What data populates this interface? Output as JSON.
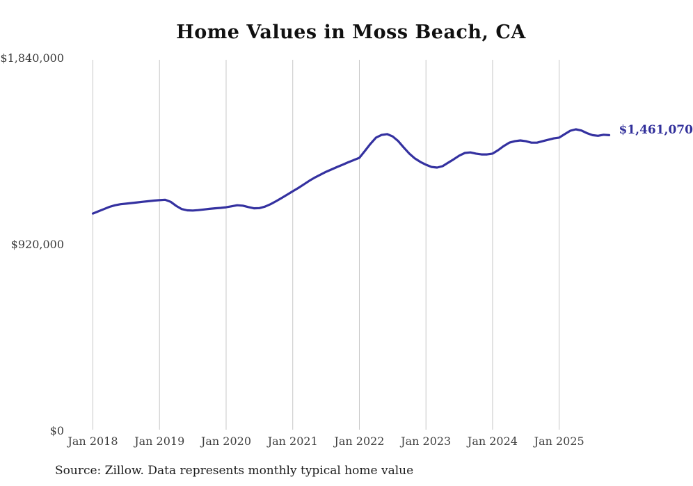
{
  "colors": {
    "line": "#3431a0",
    "end_label": "#32309b",
    "gridline": "#c7c7c7",
    "title_text": "#101010",
    "axis_text": "#3f3f3f",
    "source_text": "#1c1c1c",
    "background": "#ffffff"
  },
  "chart_data": {
    "type": "line",
    "title": "Home Values in Moss Beach, CA",
    "source": "Source: Zillow. Data represents monthly typical home value",
    "xlabel": "",
    "ylabel": "",
    "ylim": [
      0,
      1840000
    ],
    "grid": "vertical-only",
    "legend": "none",
    "last_value_label": "$1,461,070",
    "y_tick_labels": [
      "$1,840,000",
      "$920,000",
      "$0"
    ],
    "y_tick_values": [
      1840000,
      920000,
      0
    ],
    "x_tick_labels": [
      "Jan 2018",
      "Jan 2019",
      "Jan 2020",
      "Jan 2021",
      "Jan 2022",
      "Jan 2023",
      "Jan 2024",
      "Jan 2025"
    ],
    "x_tick_indices": [
      0,
      12,
      24,
      36,
      48,
      60,
      72,
      84
    ],
    "x_frequency": "monthly",
    "months": [
      "2018-01",
      "2018-02",
      "2018-03",
      "2018-04",
      "2018-05",
      "2018-06",
      "2018-07",
      "2018-08",
      "2018-09",
      "2018-10",
      "2018-11",
      "2018-12",
      "2019-01",
      "2019-02",
      "2019-03",
      "2019-04",
      "2019-05",
      "2019-06",
      "2019-07",
      "2019-08",
      "2019-09",
      "2019-10",
      "2019-11",
      "2019-12",
      "2020-01",
      "2020-02",
      "2020-03",
      "2020-04",
      "2020-05",
      "2020-06",
      "2020-07",
      "2020-08",
      "2020-09",
      "2020-10",
      "2020-11",
      "2020-12",
      "2021-01",
      "2021-02",
      "2021-03",
      "2021-04",
      "2021-05",
      "2021-06",
      "2021-07",
      "2021-08",
      "2021-09",
      "2021-10",
      "2021-11",
      "2021-12",
      "2022-01",
      "2022-02",
      "2022-03",
      "2022-04",
      "2022-05",
      "2022-06",
      "2022-07",
      "2022-08",
      "2022-09",
      "2022-10",
      "2022-11",
      "2022-12",
      "2023-01",
      "2023-02",
      "2023-03",
      "2023-04",
      "2023-05",
      "2023-06",
      "2023-07",
      "2023-08",
      "2023-09",
      "2023-10",
      "2023-11",
      "2023-12",
      "2024-01",
      "2024-02",
      "2024-03",
      "2024-04",
      "2024-05",
      "2024-06",
      "2024-07",
      "2024-08",
      "2024-09",
      "2024-10",
      "2024-11",
      "2024-12",
      "2025-01",
      "2025-02",
      "2025-03",
      "2025-04",
      "2025-05",
      "2025-06",
      "2025-07",
      "2025-08",
      "2025-09",
      "2025-10"
    ],
    "series": [
      {
        "name": "Typical home value ($)",
        "values": [
          1074000,
          1085000,
          1096000,
          1107000,
          1115000,
          1120000,
          1123000,
          1126000,
          1129000,
          1132000,
          1135000,
          1138000,
          1140000,
          1142000,
          1132000,
          1112000,
          1096000,
          1090000,
          1089000,
          1091000,
          1094000,
          1097000,
          1100000,
          1102000,
          1105000,
          1110000,
          1115000,
          1113000,
          1106000,
          1100000,
          1101000,
          1108000,
          1120000,
          1135000,
          1151000,
          1167000,
          1184000,
          1200000,
          1218000,
          1236000,
          1252000,
          1266000,
          1280000,
          1292000,
          1304000,
          1315000,
          1327000,
          1338000,
          1349000,
          1383000,
          1418000,
          1449000,
          1462000,
          1466000,
          1455000,
          1432000,
          1400000,
          1370000,
          1346000,
          1329000,
          1315000,
          1304000,
          1301000,
          1308000,
          1325000,
          1342000,
          1360000,
          1373000,
          1376000,
          1370000,
          1366000,
          1366000,
          1370000,
          1387000,
          1407000,
          1424000,
          1431000,
          1435000,
          1431000,
          1424000,
          1424000,
          1431000,
          1438000,
          1445000,
          1449000,
          1466000,
          1483000,
          1490000,
          1484000,
          1471000,
          1461000,
          1458000,
          1463000,
          1461070
        ]
      }
    ]
  }
}
